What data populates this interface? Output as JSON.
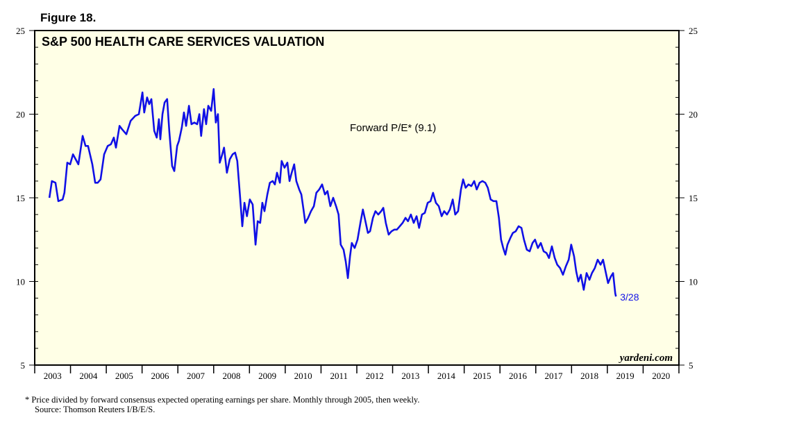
{
  "figure_label": "Figure 18.",
  "footnotes": [
    "*  Price divided by forward consensus expected operating earnings per share. Monthly through 2005, then weekly.",
    "Source: Thomson Reuters I/B/E/S."
  ],
  "chart_data": {
    "type": "line",
    "title": "S&P 500 HEALTH CARE SERVICES VALUATION",
    "annotations": {
      "series_label": "Forward P/E* (9.1)",
      "end_label": "3/28",
      "credit": "yardeni.com"
    },
    "color": "#1010e6",
    "x": [
      2003.41,
      2003.48,
      2003.58,
      2003.66,
      2003.78,
      2003.83,
      2003.91,
      2003.99,
      2004.07,
      2004.22,
      2004.34,
      2004.42,
      2004.49,
      2004.61,
      2004.69,
      2004.76,
      2004.84,
      2004.94,
      2005.04,
      2005.13,
      2005.21,
      2005.27,
      2005.37,
      2005.44,
      2005.56,
      2005.68,
      2005.81,
      2005.91,
      2006.01,
      2006.06,
      2006.14,
      2006.2,
      2006.26,
      2006.34,
      2006.41,
      2006.47,
      2006.51,
      2006.57,
      2006.63,
      2006.7,
      2006.76,
      2006.84,
      2006.9,
      2006.98,
      2007.03,
      2007.11,
      2007.17,
      2007.23,
      2007.31,
      2007.38,
      2007.46,
      2007.54,
      2007.6,
      2007.65,
      2007.73,
      2007.79,
      2007.85,
      2007.93,
      2008.0,
      2008.06,
      2008.12,
      2008.17,
      2008.24,
      2008.29,
      2008.37,
      2008.45,
      2008.53,
      2008.6,
      2008.66,
      2008.74,
      2008.8,
      2008.86,
      2008.93,
      2009.01,
      2009.09,
      2009.17,
      2009.23,
      2009.3,
      2009.36,
      2009.42,
      2009.5,
      2009.57,
      2009.65,
      2009.71,
      2009.77,
      2009.85,
      2009.9,
      2009.98,
      2010.06,
      2010.12,
      2010.18,
      2010.25,
      2010.31,
      2010.39,
      2010.45,
      2010.51,
      2010.56,
      2010.64,
      2010.72,
      2010.8,
      2010.87,
      2010.95,
      2011.03,
      2011.11,
      2011.18,
      2011.26,
      2011.34,
      2011.42,
      2011.49,
      2011.55,
      2011.63,
      2011.69,
      2011.75,
      2011.81,
      2011.86,
      2011.94,
      2012.02,
      2012.1,
      2012.17,
      2012.25,
      2012.31,
      2012.37,
      2012.45,
      2012.52,
      2012.6,
      2012.68,
      2012.74,
      2012.81,
      2012.89,
      2012.97,
      2013.05,
      2013.12,
      2013.2,
      2013.28,
      2013.36,
      2013.43,
      2013.51,
      2013.59,
      2013.67,
      2013.74,
      2013.82,
      2013.9,
      2013.98,
      2014.06,
      2014.13,
      2014.21,
      2014.29,
      2014.37,
      2014.44,
      2014.52,
      2014.6,
      2014.68,
      2014.75,
      2014.83,
      2014.91,
      2014.97,
      2015.04,
      2015.12,
      2015.2,
      2015.28,
      2015.35,
      2015.43,
      2015.51,
      2015.59,
      2015.66,
      2015.74,
      2015.82,
      2015.9,
      2015.97,
      2016.03,
      2016.09,
      2016.15,
      2016.21,
      2016.29,
      2016.36,
      2016.44,
      2016.52,
      2016.6,
      2016.67,
      2016.75,
      2016.83,
      2016.91,
      2016.98,
      2017.06,
      2017.14,
      2017.22,
      2017.3,
      2017.37,
      2017.45,
      2017.53,
      2017.6,
      2017.68,
      2017.76,
      2017.84,
      2017.92,
      2017.99,
      2018.07,
      2018.13,
      2018.19,
      2018.26,
      2018.34,
      2018.42,
      2018.5,
      2018.57,
      2018.65,
      2018.73,
      2018.81,
      2018.88,
      2018.96,
      2019.02,
      2019.1,
      2019.16,
      2019.22,
      2019.24
    ],
    "values": [
      15.0,
      16.0,
      15.9,
      14.8,
      14.9,
      15.3,
      17.1,
      17.0,
      17.6,
      17.0,
      18.7,
      18.1,
      18.1,
      17.0,
      15.9,
      15.9,
      16.1,
      17.6,
      18.1,
      18.2,
      18.6,
      18.0,
      19.3,
      19.1,
      18.8,
      19.6,
      19.9,
      20.0,
      21.3,
      20.1,
      21.0,
      20.6,
      20.9,
      19.0,
      18.6,
      19.7,
      18.5,
      20.0,
      20.7,
      20.9,
      19.0,
      16.9,
      16.6,
      18.1,
      18.4,
      19.2,
      20.1,
      19.3,
      20.5,
      19.4,
      19.5,
      19.4,
      20.0,
      18.7,
      20.3,
      19.4,
      20.5,
      20.2,
      21.5,
      19.5,
      20.0,
      17.1,
      17.6,
      18.0,
      16.5,
      17.3,
      17.6,
      17.7,
      17.2,
      15.0,
      13.3,
      14.7,
      13.9,
      14.9,
      14.6,
      12.2,
      13.6,
      13.5,
      14.7,
      14.2,
      15.2,
      15.9,
      16.0,
      15.8,
      16.5,
      15.9,
      17.2,
      16.8,
      17.1,
      16.0,
      16.5,
      17.0,
      16.0,
      15.5,
      15.2,
      14.3,
      13.5,
      13.8,
      14.2,
      14.5,
      15.3,
      15.5,
      15.8,
      15.2,
      15.4,
      14.5,
      15.0,
      14.5,
      14.0,
      12.2,
      11.9,
      11.2,
      10.2,
      11.5,
      12.3,
      12.0,
      12.5,
      13.5,
      14.3,
      13.5,
      12.9,
      13.0,
      13.8,
      14.2,
      14.0,
      14.2,
      14.4,
      13.5,
      12.8,
      13.0,
      13.1,
      13.1,
      13.3,
      13.5,
      13.8,
      13.6,
      14.0,
      13.5,
      13.9,
      13.2,
      14.0,
      14.1,
      14.7,
      14.8,
      15.3,
      14.7,
      14.5,
      13.9,
      14.2,
      14.0,
      14.3,
      14.9,
      14.0,
      14.2,
      15.5,
      16.1,
      15.6,
      15.8,
      15.7,
      16.0,
      15.5,
      15.9,
      16.0,
      15.9,
      15.6,
      14.9,
      14.8,
      14.8,
      13.8,
      12.5,
      12.0,
      11.6,
      12.2,
      12.6,
      12.9,
      13.0,
      13.3,
      13.2,
      12.5,
      11.9,
      11.8,
      12.3,
      12.5,
      12.0,
      12.3,
      11.8,
      11.7,
      11.4,
      12.1,
      11.4,
      11.0,
      10.8,
      10.4,
      10.9,
      11.3,
      12.2,
      11.5,
      10.6,
      10.0,
      10.4,
      9.5,
      10.5,
      10.1,
      10.5,
      10.8,
      11.3,
      11.0,
      11.3,
      10.5,
      9.9,
      10.3,
      10.5,
      9.3,
      9.1
    ],
    "xlim": [
      2003,
      2021
    ],
    "xticks": [
      {
        "value": 2003.5,
        "label": "2003"
      },
      {
        "value": 2004.5,
        "label": "2004"
      },
      {
        "value": 2005.5,
        "label": "2005"
      },
      {
        "value": 2006.5,
        "label": "2006"
      },
      {
        "value": 2007.5,
        "label": "2007"
      },
      {
        "value": 2008.5,
        "label": "2008"
      },
      {
        "value": 2009.5,
        "label": "2009"
      },
      {
        "value": 2010.5,
        "label": "2010"
      },
      {
        "value": 2011.5,
        "label": "2011"
      },
      {
        "value": 2012.5,
        "label": "2012"
      },
      {
        "value": 2013.5,
        "label": "2013"
      },
      {
        "value": 2014.5,
        "label": "2014"
      },
      {
        "value": 2015.5,
        "label": "2015"
      },
      {
        "value": 2016.5,
        "label": "2016"
      },
      {
        "value": 2017.5,
        "label": "2017"
      },
      {
        "value": 2018.5,
        "label": "2018"
      },
      {
        "value": 2019.5,
        "label": "2019"
      },
      {
        "value": 2020.5,
        "label": "2020"
      }
    ],
    "ylim": [
      5,
      25
    ],
    "yticks": [
      5,
      10,
      15,
      20,
      25
    ],
    "grid": false
  }
}
